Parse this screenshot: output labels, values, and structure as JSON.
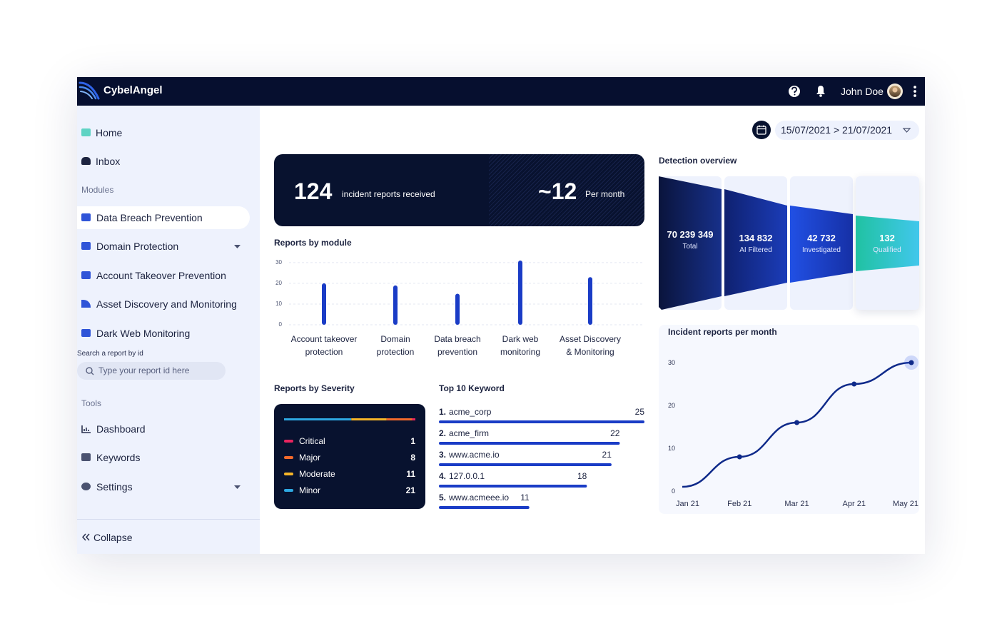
{
  "header": {
    "brand": "CybelAngel",
    "user": "John Doe"
  },
  "sidebar": {
    "nav": [
      "Home",
      "Inbox"
    ],
    "modules_heading": "Modules",
    "modules": [
      "Data Breach Prevention",
      "Domain Protection",
      "Account Takeover Prevention",
      "Asset Discovery and Monitoring",
      "Dark Web Monitoring"
    ],
    "search_label": "Search a report by id",
    "search_placeholder": "Type your report id here",
    "tools_heading": "Tools",
    "tools": [
      "Dashboard",
      "Keywords",
      "Settings"
    ],
    "collapse": "Collapse"
  },
  "date_range": "15/07/2021 > 21/07/2021",
  "summary": {
    "total": 124,
    "total_label": "incident reports received",
    "rate": "~12",
    "rate_label": "Per month"
  },
  "severity": {
    "title": "Reports by Severity",
    "items": [
      {
        "name": "Critical",
        "value": 1,
        "color": "#e8245f"
      },
      {
        "name": "Major",
        "value": 8,
        "color": "#f26a2b"
      },
      {
        "name": "Moderate",
        "value": 11,
        "color": "#f5b428"
      },
      {
        "name": "Minor",
        "value": 21,
        "color": "#2ea8e2"
      }
    ]
  },
  "keywords": {
    "title": "Top 10 Keyword",
    "color": "#1a3cc6",
    "items": [
      {
        "rank": "1.",
        "name": "acme_corp",
        "value": 25
      },
      {
        "rank": "2.",
        "name": "acme_firm",
        "value": 22
      },
      {
        "rank": "3.",
        "name": "www.acme.io",
        "value": 21
      },
      {
        "rank": "4.",
        "name": "127.0.0.1",
        "value": 18
      },
      {
        "rank": "5.",
        "name": "www.acmeee.io",
        "value": 11
      }
    ]
  },
  "detection": {
    "title": "Detection overview",
    "stages": [
      {
        "value": "70 239 349",
        "label": "Total"
      },
      {
        "value": "134 832",
        "label": "AI Filtered"
      },
      {
        "value": "42 732",
        "label": "Investigated"
      },
      {
        "value": "132",
        "label": "Qualified"
      }
    ]
  },
  "chart_data": [
    {
      "type": "bar",
      "title": "Reports by module",
      "categories": [
        "Account takeover protection",
        "Domain protection",
        "Data breach prevention",
        "Dark web monitoring",
        "Asset Discovery & Monitoring"
      ],
      "values": [
        20,
        19,
        15,
        31,
        23
      ],
      "color": "#1a3cc6",
      "ylim": [
        0,
        31
      ],
      "yticks": [
        0,
        10,
        20,
        30
      ],
      "grid": true
    },
    {
      "type": "line",
      "title": "Incident reports per month",
      "categories": [
        "Jan 21",
        "Feb 21",
        "Mar 21",
        "Apr 21",
        "May 21"
      ],
      "values": [
        1,
        8,
        16,
        25,
        30
      ],
      "color": "#0f2a8a",
      "ylim": [
        0,
        30
      ],
      "yticks": [
        0,
        10,
        20,
        30
      ],
      "grid": false
    }
  ]
}
